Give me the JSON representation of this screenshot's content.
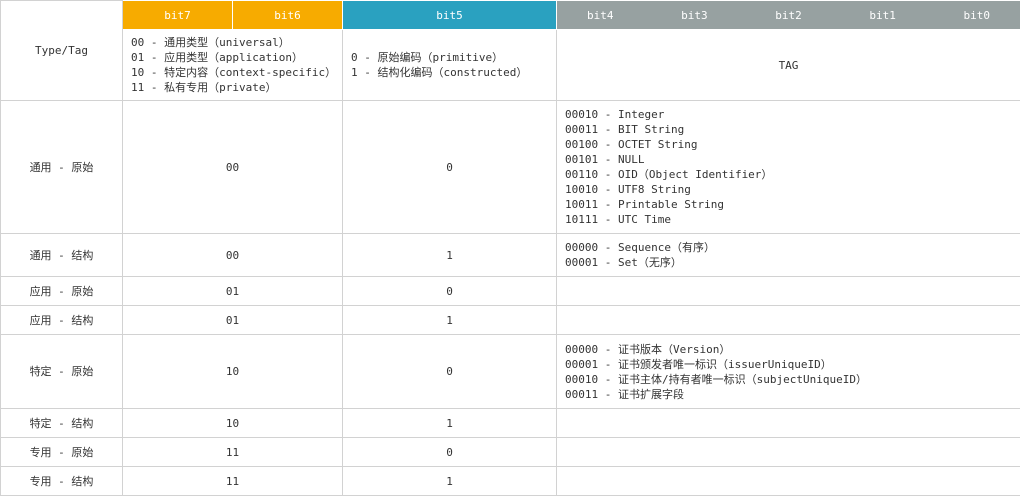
{
  "header": {
    "bit7": "bit7",
    "bit6": "bit6",
    "bit5": "bit5",
    "bits_tag": [
      "bit4",
      "bit3",
      "bit2",
      "bit1",
      "bit0"
    ]
  },
  "desc_row": {
    "type_tag": "Type/Tag",
    "class_lines": [
      "00 - 通用类型（universal）",
      "01 - 应用类型（application）",
      "10 - 特定内容（context-specific）",
      "11 - 私有专用（private）"
    ],
    "pc_lines": [
      "0 - 原始编码（primitive）",
      "1 - 结构化编码（constructed）"
    ],
    "tag": "TAG"
  },
  "rows": [
    {
      "type": "通用 - 原始",
      "cls": "00",
      "pc": "0",
      "tags": [
        "00010 - Integer",
        "00011 - BIT String",
        "00100 - OCTET String",
        "00101 - NULL",
        "00110 - OID（Object Identifier）",
        "10010 - UTF8 String",
        "10011 - Printable String",
        "10111 - UTC Time"
      ]
    },
    {
      "type": "通用 - 结构",
      "cls": "00",
      "pc": "1",
      "tags": [
        "00000 - Sequence（有序）",
        "00001 - Set（无序）"
      ]
    },
    {
      "type": "应用 - 原始",
      "cls": "01",
      "pc": "0",
      "tags": []
    },
    {
      "type": "应用 - 结构",
      "cls": "01",
      "pc": "1",
      "tags": []
    },
    {
      "type": "特定 - 原始",
      "cls": "10",
      "pc": "0",
      "tags": [
        "00000 - 证书版本（Version）",
        "00001 - 证书颁发者唯一标识（issuerUniqueID）",
        "00010 - 证书主体/持有者唯一标识（subjectUniqueID）",
        "00011 - 证书扩展字段"
      ]
    },
    {
      "type": "特定 - 结构",
      "cls": "10",
      "pc": "1",
      "tags": []
    },
    {
      "type": "专用 - 原始",
      "cls": "11",
      "pc": "0",
      "tags": []
    },
    {
      "type": "专用 - 结构",
      "cls": "11",
      "pc": "1",
      "tags": []
    }
  ],
  "colors": {
    "class_header": "#f7ab00",
    "pc_header": "#2aa1c0",
    "tag_header": "#97a1a1"
  }
}
